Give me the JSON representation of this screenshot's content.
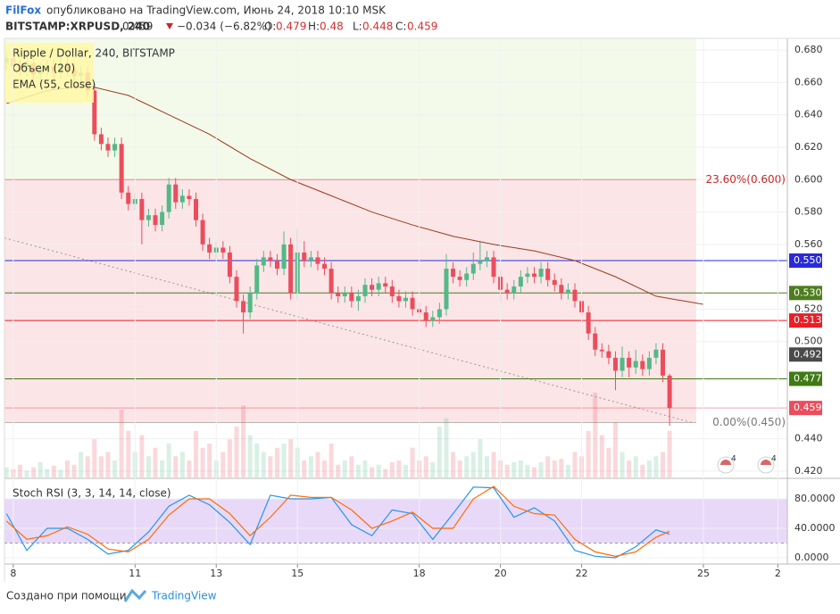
{
  "header": {
    "author": "FilFox",
    "published": "опубликовано на TradingView.com, Июнь 24, 2018 10:10 MSK",
    "symbol": "BITSTAMP:XRPUSD, 240",
    "change": "−0.034 (−6.82%)",
    "o": "O:",
    "h": "H:",
    "l": "L:",
    "c": "C:"
  },
  "footer": {
    "created": "Создано при помощи",
    "brand": "TradingView"
  },
  "chart_data": [
    {
      "type": "candlestick",
      "title": "Ripple / Dollar, 240, BITSTAMP",
      "up_color": "#53b987",
      "down_color": "#eb4d5c",
      "ohlc": [
        [
          0.672,
          0.679,
          0.668,
          0.675
        ],
        [
          0.675,
          0.679,
          0.666,
          0.67
        ],
        [
          0.67,
          0.674,
          0.664,
          0.668
        ],
        [
          0.668,
          0.676,
          0.664,
          0.672
        ],
        [
          0.672,
          0.676,
          0.661,
          0.665
        ],
        [
          0.665,
          0.672,
          0.661,
          0.668
        ],
        [
          0.668,
          0.674,
          0.664,
          0.67
        ],
        [
          0.67,
          0.674,
          0.662,
          0.666
        ],
        [
          0.666,
          0.676,
          0.662,
          0.672
        ],
        [
          0.672,
          0.676,
          0.664,
          0.668
        ],
        [
          0.668,
          0.672,
          0.66,
          0.664
        ],
        [
          0.664,
          0.67,
          0.66,
          0.666
        ],
        [
          0.666,
          0.67,
          0.651,
          0.655
        ],
        [
          0.655,
          0.659,
          0.624,
          0.628
        ],
        [
          0.628,
          0.632,
          0.618,
          0.622
        ],
        [
          0.622,
          0.626,
          0.614,
          0.618
        ],
        [
          0.618,
          0.626,
          0.614,
          0.622
        ],
        [
          0.622,
          0.626,
          0.588,
          0.592
        ],
        [
          0.592,
          0.596,
          0.581,
          0.585
        ],
        [
          0.585,
          0.592,
          0.581,
          0.588
        ],
        [
          0.588,
          0.592,
          0.56,
          0.575
        ],
        [
          0.575,
          0.582,
          0.571,
          0.578
        ],
        [
          0.578,
          0.582,
          0.568,
          0.572
        ],
        [
          0.572,
          0.584,
          0.568,
          0.58
        ],
        [
          0.58,
          0.601,
          0.576,
          0.597
        ],
        [
          0.597,
          0.601,
          0.582,
          0.586
        ],
        [
          0.586,
          0.594,
          0.582,
          0.59
        ],
        [
          0.59,
          0.594,
          0.584,
          0.588
        ],
        [
          0.588,
          0.592,
          0.571,
          0.575
        ],
        [
          0.575,
          0.579,
          0.556,
          0.56
        ],
        [
          0.56,
          0.564,
          0.551,
          0.555
        ],
        [
          0.555,
          0.562,
          0.551,
          0.558
        ],
        [
          0.558,
          0.562,
          0.551,
          0.555
        ],
        [
          0.555,
          0.559,
          0.536,
          0.54
        ],
        [
          0.54,
          0.544,
          0.521,
          0.525
        ],
        [
          0.525,
          0.529,
          0.505,
          0.518
        ],
        [
          0.518,
          0.534,
          0.514,
          0.53
        ],
        [
          0.53,
          0.551,
          0.526,
          0.547
        ],
        [
          0.547,
          0.556,
          0.543,
          0.552
        ],
        [
          0.552,
          0.556,
          0.546,
          0.55
        ],
        [
          0.55,
          0.554,
          0.541,
          0.545
        ],
        [
          0.545,
          0.568,
          0.541,
          0.56
        ],
        [
          0.56,
          0.564,
          0.526,
          0.53
        ],
        [
          0.53,
          0.57,
          0.526,
          0.555
        ],
        [
          0.555,
          0.562,
          0.546,
          0.55
        ],
        [
          0.55,
          0.556,
          0.546,
          0.552
        ],
        [
          0.552,
          0.556,
          0.544,
          0.548
        ],
        [
          0.548,
          0.552,
          0.541,
          0.545
        ],
        [
          0.545,
          0.549,
          0.526,
          0.53
        ],
        [
          0.53,
          0.534,
          0.524,
          0.528
        ],
        [
          0.528,
          0.534,
          0.524,
          0.53
        ],
        [
          0.53,
          0.534,
          0.521,
          0.525
        ],
        [
          0.525,
          0.532,
          0.519,
          0.528
        ],
        [
          0.528,
          0.539,
          0.524,
          0.535
        ],
        [
          0.535,
          0.539,
          0.528,
          0.532
        ],
        [
          0.532,
          0.54,
          0.528,
          0.536
        ],
        [
          0.536,
          0.54,
          0.53,
          0.534
        ],
        [
          0.534,
          0.538,
          0.524,
          0.528
        ],
        [
          0.528,
          0.532,
          0.521,
          0.525
        ],
        [
          0.525,
          0.531,
          0.521,
          0.527
        ],
        [
          0.527,
          0.531,
          0.516,
          0.52
        ],
        [
          0.52,
          0.524,
          0.514,
          0.518
        ],
        [
          0.518,
          0.522,
          0.509,
          0.513
        ],
        [
          0.513,
          0.519,
          0.509,
          0.515
        ],
        [
          0.515,
          0.524,
          0.511,
          0.52
        ],
        [
          0.52,
          0.554,
          0.516,
          0.545
        ],
        [
          0.545,
          0.549,
          0.536,
          0.54
        ],
        [
          0.54,
          0.544,
          0.534,
          0.538
        ],
        [
          0.538,
          0.546,
          0.534,
          0.542
        ],
        [
          0.542,
          0.555,
          0.538,
          0.548
        ],
        [
          0.548,
          0.562,
          0.544,
          0.55
        ],
        [
          0.55,
          0.556,
          0.546,
          0.552
        ],
        [
          0.552,
          0.556,
          0.536,
          0.54
        ],
        [
          0.54,
          0.544,
          0.524,
          0.532
        ],
        [
          0.532,
          0.536,
          0.526,
          0.53
        ],
        [
          0.53,
          0.538,
          0.526,
          0.534
        ],
        [
          0.534,
          0.544,
          0.53,
          0.54
        ],
        [
          0.54,
          0.546,
          0.536,
          0.542
        ],
        [
          0.542,
          0.546,
          0.536,
          0.54
        ],
        [
          0.54,
          0.549,
          0.536,
          0.545
        ],
        [
          0.545,
          0.549,
          0.534,
          0.538
        ],
        [
          0.538,
          0.542,
          0.531,
          0.535
        ],
        [
          0.535,
          0.539,
          0.526,
          0.53
        ],
        [
          0.53,
          0.536,
          0.526,
          0.532
        ],
        [
          0.532,
          0.536,
          0.521,
          0.525
        ],
        [
          0.525,
          0.529,
          0.514,
          0.518
        ],
        [
          0.518,
          0.522,
          0.501,
          0.505
        ],
        [
          0.505,
          0.509,
          0.491,
          0.495
        ],
        [
          0.495,
          0.499,
          0.49,
          0.494
        ],
        [
          0.494,
          0.498,
          0.486,
          0.49
        ],
        [
          0.49,
          0.494,
          0.47,
          0.482
        ],
        [
          0.482,
          0.497,
          0.478,
          0.49
        ],
        [
          0.49,
          0.494,
          0.478,
          0.484
        ],
        [
          0.484,
          0.495,
          0.48,
          0.488
        ],
        [
          0.488,
          0.492,
          0.479,
          0.483
        ],
        [
          0.483,
          0.494,
          0.479,
          0.49
        ],
        [
          0.49,
          0.499,
          0.486,
          0.495
        ],
        [
          0.495,
          0.499,
          0.475,
          0.479
        ],
        [
          0.479,
          0.48,
          0.448,
          0.459
        ]
      ],
      "volume": {
        "name": "Объем (20)",
        "values": [
          12,
          10,
          15,
          8,
          12,
          18,
          10,
          14,
          9,
          20,
          15,
          30,
          25,
          45,
          25,
          30,
          20,
          80,
          55,
          30,
          50,
          25,
          35,
          20,
          40,
          25,
          30,
          20,
          55,
          35,
          40,
          20,
          30,
          45,
          60,
          85,
          50,
          40,
          30,
          25,
          35,
          40,
          45,
          35,
          20,
          25,
          30,
          20,
          40,
          15,
          20,
          25,
          15,
          20,
          12,
          15,
          10,
          18,
          20,
          15,
          35,
          20,
          25,
          18,
          60,
          70,
          30,
          20,
          25,
          30,
          45,
          25,
          30,
          20,
          15,
          18,
          20,
          15,
          12,
          18,
          25,
          20,
          22,
          15,
          30,
          25,
          55,
          100,
          50,
          35,
          65,
          30,
          20,
          25,
          15,
          20,
          25,
          30,
          55
        ]
      },
      "ema": {
        "name": "EMA (55, close)",
        "color": "#9c3a1c",
        "x": [
          0,
          6,
          12,
          18,
          24,
          30,
          36,
          42,
          48,
          54,
          60,
          66,
          72,
          78,
          84,
          90,
          96,
          103
        ],
        "values": [
          0.647,
          0.655,
          0.658,
          0.652,
          0.64,
          0.628,
          0.613,
          0.6,
          0.59,
          0.58,
          0.572,
          0.565,
          0.56,
          0.556,
          0.55,
          0.54,
          0.528,
          0.523
        ]
      },
      "trendline": {
        "x": [
          -0.3,
          101.3
        ],
        "values": [
          0.564,
          0.45
        ]
      },
      "fib": [
        {
          "value": 0.6,
          "label": "23.60%(0.600)",
          "color": "#c62828"
        },
        {
          "value": 0.45,
          "label": "0.00%(0.450)",
          "color": "#777777"
        }
      ],
      "levels": [
        {
          "value": 0.55,
          "label": "0.550",
          "color": "#2a2ad8"
        },
        {
          "value": 0.53,
          "label": "0.530",
          "color": "#4e7d1e"
        },
        {
          "value": 0.513,
          "label": "0.513",
          "color": "#ee1c25"
        },
        {
          "value": 0.492,
          "label": "0.492",
          "color": "#4a4a4a",
          "line": false
        },
        {
          "value": 0.477,
          "label": "0.477",
          "color": "#3f7a14"
        }
      ],
      "events": [
        "4",
        "4"
      ],
      "xlim": [
        -0.3,
        115.4
      ],
      "ylim": [
        0.4161,
        0.6872
      ],
      "yticks": [
        {
          "value": 0.68,
          "label": "0.680"
        },
        {
          "value": 0.66,
          "label": "0.660"
        },
        {
          "value": 0.64,
          "label": "0.640"
        },
        {
          "value": 0.62,
          "label": "0.620"
        },
        {
          "value": 0.6,
          "label": "0.600"
        },
        {
          "value": 0.58,
          "label": "0.580"
        },
        {
          "value": 0.56,
          "label": "0.560"
        },
        {
          "value": 0.52,
          "label": "0.520"
        },
        {
          "value": 0.5,
          "label": "0.500"
        },
        {
          "value": 0.44,
          "label": "0.440"
        },
        {
          "value": 0.42,
          "label": "0.420"
        }
      ],
      "grid": true
    },
    {
      "type": "line",
      "title": "Stoch RSI (3, 3, 14, 14, close)",
      "x": [
        0,
        3,
        6,
        9,
        12,
        15,
        18,
        21,
        24,
        27,
        30,
        33,
        36,
        39,
        42,
        45,
        48,
        51,
        54,
        57,
        60,
        63,
        66,
        69,
        72,
        75,
        78,
        81,
        84,
        87,
        90,
        93,
        96,
        98
      ],
      "series": [
        {
          "color": "#2196f3",
          "values": [
            60,
            10,
            40,
            40,
            25,
            5,
            10,
            35,
            70,
            85,
            72,
            48,
            18,
            85,
            80,
            80,
            82,
            45,
            30,
            65,
            60,
            25,
            60,
            96,
            95,
            55,
            68,
            50,
            10,
            2,
            0,
            15,
            38,
            32
          ]
        },
        {
          "color": "#ff6d00",
          "values": [
            50,
            25,
            30,
            42,
            32,
            12,
            8,
            25,
            58,
            80,
            80,
            60,
            30,
            55,
            85,
            82,
            82,
            65,
            40,
            50,
            62,
            40,
            40,
            80,
            97,
            70,
            60,
            58,
            25,
            8,
            2,
            8,
            28,
            36
          ]
        }
      ],
      "band": [
        20,
        80
      ],
      "band_color": "#e3d0f7",
      "xlim": [
        -0.3,
        115.4
      ],
      "ylim": [
        -8.5,
        106.7
      ],
      "yticks": [
        {
          "value": 0,
          "label": "0.0000"
        },
        {
          "value": 40,
          "label": "40.0000"
        },
        {
          "value": 80,
          "label": "80.0000"
        }
      ],
      "xticks": [
        {
          "value": 1,
          "label": "8"
        },
        {
          "value": 19,
          "label": "11"
        },
        {
          "value": 31,
          "label": "13"
        },
        {
          "value": 43,
          "label": "15"
        },
        {
          "value": 61,
          "label": "18"
        },
        {
          "value": 73,
          "label": "20"
        },
        {
          "value": 85,
          "label": "22"
        },
        {
          "value": 103,
          "label": "25"
        },
        {
          "value": 114,
          "label": "2"
        }
      ],
      "grid": true
    }
  ]
}
